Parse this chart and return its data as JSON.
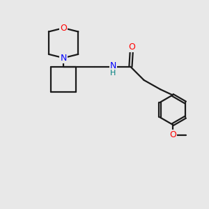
{
  "background_color": "#e8e8e8",
  "bond_color": "#1a1a1a",
  "atom_colors": {
    "O": "#ff0000",
    "N": "#0000ff",
    "H": "#008080",
    "C": "#1a1a1a"
  },
  "figsize": [
    3.0,
    3.0
  ],
  "dpi": 100
}
